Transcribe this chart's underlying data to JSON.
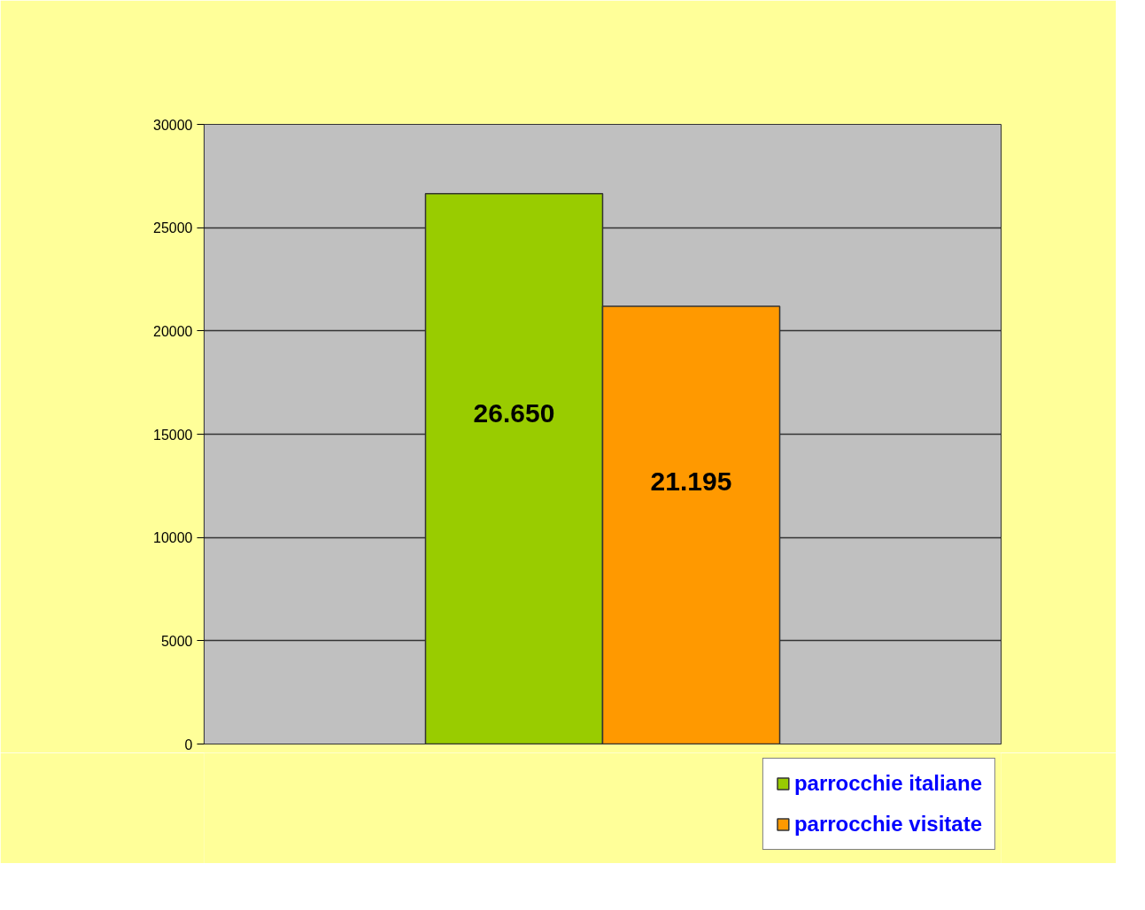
{
  "chart_data": {
    "type": "bar",
    "categories": [
      null
    ],
    "series": [
      {
        "name": "parrocchie italiane",
        "color": "#99cc00",
        "values": [
          26650
        ],
        "value_labels": [
          "26.650"
        ]
      },
      {
        "name": "parrocchie visitate",
        "color": "#ff9900",
        "values": [
          21195
        ],
        "value_labels": [
          "21.195"
        ]
      }
    ],
    "ylim": [
      0,
      30000
    ],
    "yticks": [
      0,
      5000,
      10000,
      15000,
      20000,
      25000,
      30000
    ],
    "grid": "y",
    "legend": "bottom right"
  }
}
